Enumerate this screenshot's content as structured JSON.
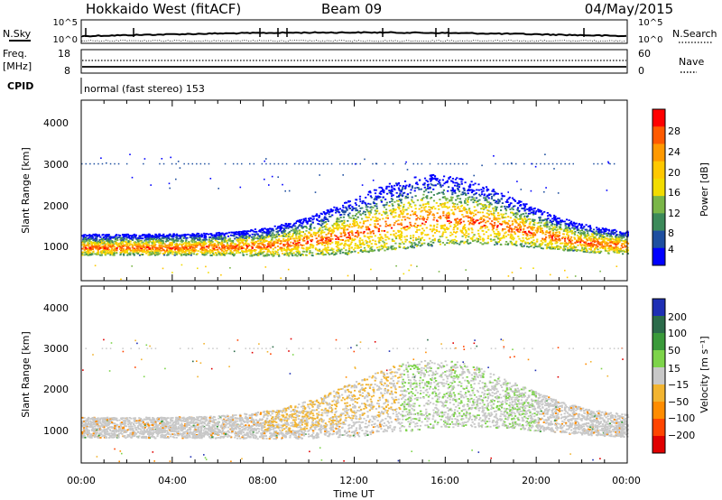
{
  "header": {
    "station": "Hokkaido West (fitACF)",
    "beam": "Beam 09",
    "date": "04/May/2015"
  },
  "strip_panels": {
    "nsky_label": "N.Sky",
    "nsky_ticks": [
      "10^5",
      "10^0"
    ],
    "nsearch_label": "N.Search",
    "nsearch_ticks": [
      "10^5",
      "10^0"
    ],
    "freq_label_1": "Freq.",
    "freq_label_2": "[MHz]",
    "freq_ticks": [
      "18",
      "8"
    ],
    "nave_label": "Nave",
    "nave_ticks": [
      "60",
      "0"
    ],
    "cpid_label": "CPID",
    "cpid_value": "normal (fast stereo) 153"
  },
  "chart_data": [
    {
      "type": "heatmap",
      "id": "power",
      "ylabel": "Slant Range [km]",
      "yticks": [
        "4000",
        "3000",
        "2000",
        "1000"
      ],
      "ylim": [
        200,
        4500
      ],
      "xlim": [
        0,
        24
      ],
      "colorbar_label": "Power [dB]",
      "colorbar_ticks": [
        "28",
        "24",
        "20",
        "16",
        "12",
        "8",
        "4"
      ],
      "colorbar_colors": [
        "#ff0000",
        "#ff5a00",
        "#ff9900",
        "#ffc800",
        "#f2dc00",
        "#7ab648",
        "#3c8a5a",
        "#1e4fa0",
        "#0000ff"
      ]
    },
    {
      "type": "heatmap",
      "id": "velocity",
      "ylabel": "Slant Range [km]",
      "yticks": [
        "4000",
        "3000",
        "2000",
        "1000"
      ],
      "ylim": [
        200,
        4500
      ],
      "xlim": [
        0,
        24
      ],
      "colorbar_label": "Velocity [m s⁻¹]",
      "colorbar_ticks": [
        "200",
        "100",
        "50",
        "15",
        "−15",
        "−50",
        "−100",
        "−200"
      ],
      "colorbar_colors": [
        "#1e2fb4",
        "#2b6b4a",
        "#3a9a3a",
        "#7dd44a",
        "#c8c8c8",
        "#f2b430",
        "#ff8c00",
        "#ff4500",
        "#e00000"
      ]
    }
  ],
  "time_axis": {
    "ticks": [
      "00:00",
      "04:00",
      "08:00",
      "12:00",
      "16:00",
      "20:00",
      "00:00"
    ],
    "label": "Time UT"
  }
}
